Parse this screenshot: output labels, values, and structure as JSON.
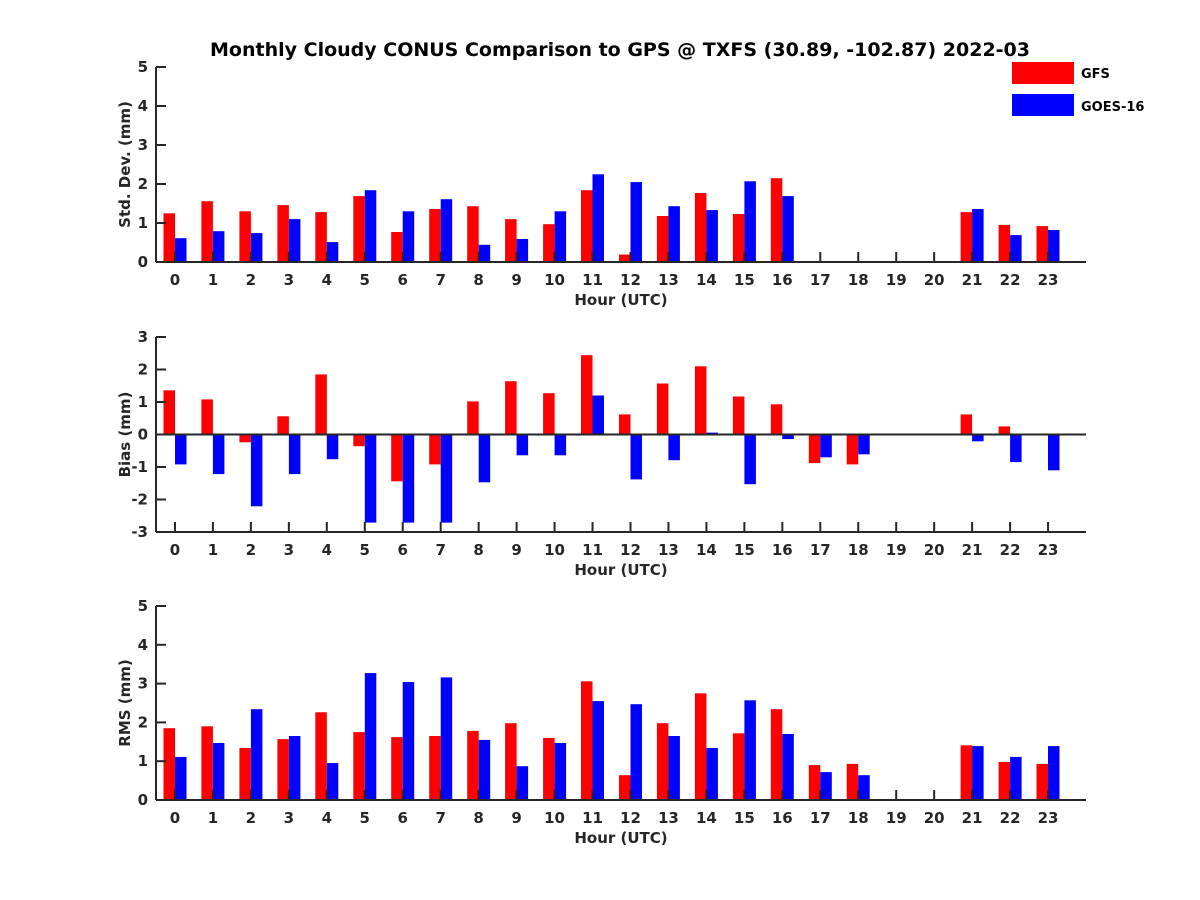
{
  "chart_data": {
    "title": "Monthly Cloudy CONUS Comparison to GPS @ TXFS (30.89, -102.87) 2022-03",
    "legend": {
      "placement": "top-right",
      "entries": [
        {
          "name": "GFS",
          "color": "#ff0000"
        },
        {
          "name": "GOES-16",
          "color": "#0000ff"
        }
      ]
    },
    "panels": [
      {
        "type": "bar",
        "id": "std",
        "ylabel": "Std. Dev. (mm)",
        "xlabel": "Hour (UTC)",
        "ylim": [
          0,
          5
        ],
        "yticks": [
          0,
          1,
          2,
          3,
          4,
          5
        ],
        "zero_line": false,
        "categories": [
          "0",
          "1",
          "2",
          "3",
          "4",
          "5",
          "6",
          "7",
          "8",
          "9",
          "10",
          "11",
          "12",
          "13",
          "14",
          "15",
          "16",
          "17",
          "18",
          "19",
          "20",
          "21",
          "22",
          "23"
        ],
        "series": [
          {
            "name": "GFS",
            "color": "#ff0000",
            "values": [
              1.25,
              1.56,
              1.3,
              1.46,
              1.28,
              1.69,
              0.77,
              1.36,
              1.43,
              1.1,
              0.97,
              1.84,
              0.19,
              1.18,
              1.77,
              1.23,
              2.15,
              null,
              null,
              null,
              null,
              1.28,
              0.95,
              0.92
            ]
          },
          {
            "name": "GOES-16",
            "color": "#0000ff",
            "values": [
              0.61,
              0.79,
              0.74,
              1.1,
              0.51,
              1.84,
              1.3,
              1.61,
              0.44,
              0.59,
              1.3,
              2.25,
              2.05,
              1.43,
              1.33,
              2.07,
              1.69,
              null,
              null,
              null,
              null,
              1.36,
              0.69,
              0.82
            ]
          }
        ]
      },
      {
        "type": "bar",
        "id": "bias",
        "ylabel": "Bias (mm)",
        "xlabel": "Hour (UTC)",
        "ylim": [
          -3,
          3
        ],
        "yticks": [
          -3,
          -2,
          -1,
          0,
          1,
          2,
          3
        ],
        "zero_line": true,
        "categories": [
          "0",
          "1",
          "2",
          "3",
          "4",
          "5",
          "6",
          "7",
          "8",
          "9",
          "10",
          "11",
          "12",
          "13",
          "14",
          "15",
          "16",
          "17",
          "18",
          "19",
          "20",
          "21",
          "22",
          "23"
        ],
        "series": [
          {
            "name": "GFS",
            "color": "#ff0000",
            "values": [
              1.36,
              1.08,
              -0.24,
              0.56,
              1.85,
              -0.36,
              -1.44,
              -0.92,
              1.02,
              1.64,
              1.27,
              2.44,
              0.62,
              1.57,
              2.1,
              1.17,
              0.93,
              -0.88,
              -0.92,
              null,
              null,
              0.62,
              0.25,
              0.03
            ]
          },
          {
            "name": "GOES-16",
            "color": "#0000ff",
            "values": [
              -0.92,
              -1.22,
              -2.21,
              -1.22,
              -0.76,
              -2.71,
              -2.71,
              -2.71,
              -1.47,
              -0.64,
              -0.64,
              1.2,
              -1.38,
              -0.79,
              0.06,
              -1.53,
              -0.14,
              -0.7,
              -0.61,
              null,
              null,
              -0.21,
              -0.85,
              -1.1
            ]
          }
        ]
      },
      {
        "type": "bar",
        "id": "rms",
        "ylabel": "RMS (mm)",
        "xlabel": "Hour (UTC)",
        "ylim": [
          0,
          5
        ],
        "yticks": [
          0,
          1,
          2,
          3,
          4,
          5
        ],
        "zero_line": false,
        "categories": [
          "0",
          "1",
          "2",
          "3",
          "4",
          "5",
          "6",
          "7",
          "8",
          "9",
          "10",
          "11",
          "12",
          "13",
          "14",
          "15",
          "16",
          "17",
          "18",
          "19",
          "20",
          "21",
          "22",
          "23"
        ],
        "series": [
          {
            "name": "GFS",
            "color": "#ff0000",
            "values": [
              1.85,
              1.9,
              1.34,
              1.57,
              2.26,
              1.75,
              1.62,
              1.65,
              1.78,
              1.98,
              1.6,
              3.06,
              0.64,
              1.98,
              2.75,
              1.72,
              2.34,
              0.9,
              0.93,
              null,
              null,
              1.41,
              0.98,
              0.93
            ]
          },
          {
            "name": "GOES-16",
            "color": "#0000ff",
            "values": [
              1.11,
              1.47,
              2.34,
              1.65,
              0.95,
              3.27,
              3.04,
              3.16,
              1.55,
              0.87,
              1.47,
              2.55,
              2.47,
              1.65,
              1.34,
              2.57,
              1.7,
              0.72,
              0.64,
              null,
              null,
              1.39,
              1.11,
              1.39
            ]
          }
        ]
      }
    ]
  }
}
